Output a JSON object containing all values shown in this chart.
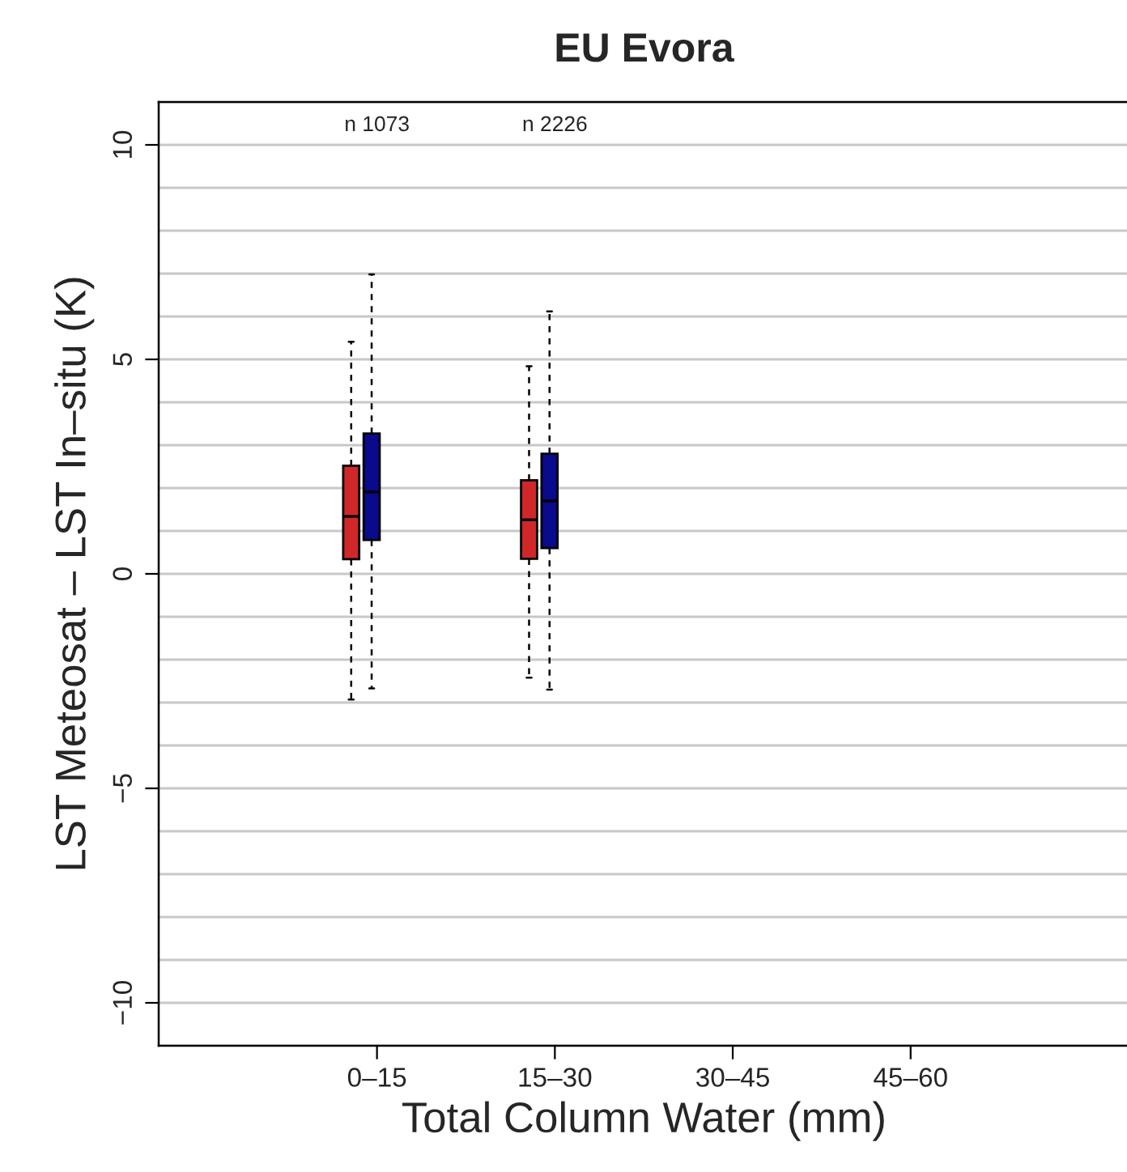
{
  "chart_data": {
    "type": "box",
    "title": "EU Evora",
    "xlabel": "Total Column Water (mm)",
    "ylabel": "LST Meteosat – LST In–situ (K)",
    "categories": [
      "0–15",
      "15–30",
      "30–45",
      "45–60"
    ],
    "series": [
      {
        "color": "#d02828",
        "boxes": [
          {
            "low": -2.93,
            "q1": 0.34,
            "median": 1.34,
            "q3": 2.52,
            "high": 5.41
          },
          {
            "low": -2.42,
            "q1": 0.35,
            "median": 1.26,
            "q3": 2.18,
            "high": 4.84
          },
          null,
          null
        ]
      },
      {
        "color": "#0a0a8c",
        "boxes": [
          {
            "low": -2.67,
            "q1": 0.79,
            "median": 1.91,
            "q3": 3.27,
            "high": 6.98
          },
          {
            "low": -2.7,
            "q1": 0.6,
            "median": 1.7,
            "q3": 2.8,
            "high": 6.12
          },
          null,
          null
        ]
      }
    ],
    "ylim": [
      -11,
      11
    ],
    "yticks": [
      {
        "value": -11,
        "label": null
      },
      -10,
      {
        "value": -9,
        "label": null
      },
      {
        "value": -8,
        "label": null
      },
      {
        "value": -7,
        "label": null
      },
      {
        "value": -6,
        "label": null
      },
      -5,
      {
        "value": -4,
        "label": null
      },
      {
        "value": -3,
        "label": null
      },
      {
        "value": -2,
        "label": null
      },
      {
        "value": -1,
        "label": null
      },
      0,
      {
        "value": 1,
        "label": null
      },
      {
        "value": 2,
        "label": null
      },
      {
        "value": 3,
        "label": null
      },
      {
        "value": 4,
        "label": null
      },
      5,
      {
        "value": 6,
        "label": null
      },
      {
        "value": 7,
        "label": null
      },
      {
        "value": 8,
        "label": null
      },
      {
        "value": 9,
        "label": null
      },
      10,
      {
        "value": 11,
        "label": null
      }
    ],
    "grid": "y",
    "annotations": [
      "n 1073",
      "n 2226"
    ]
  }
}
